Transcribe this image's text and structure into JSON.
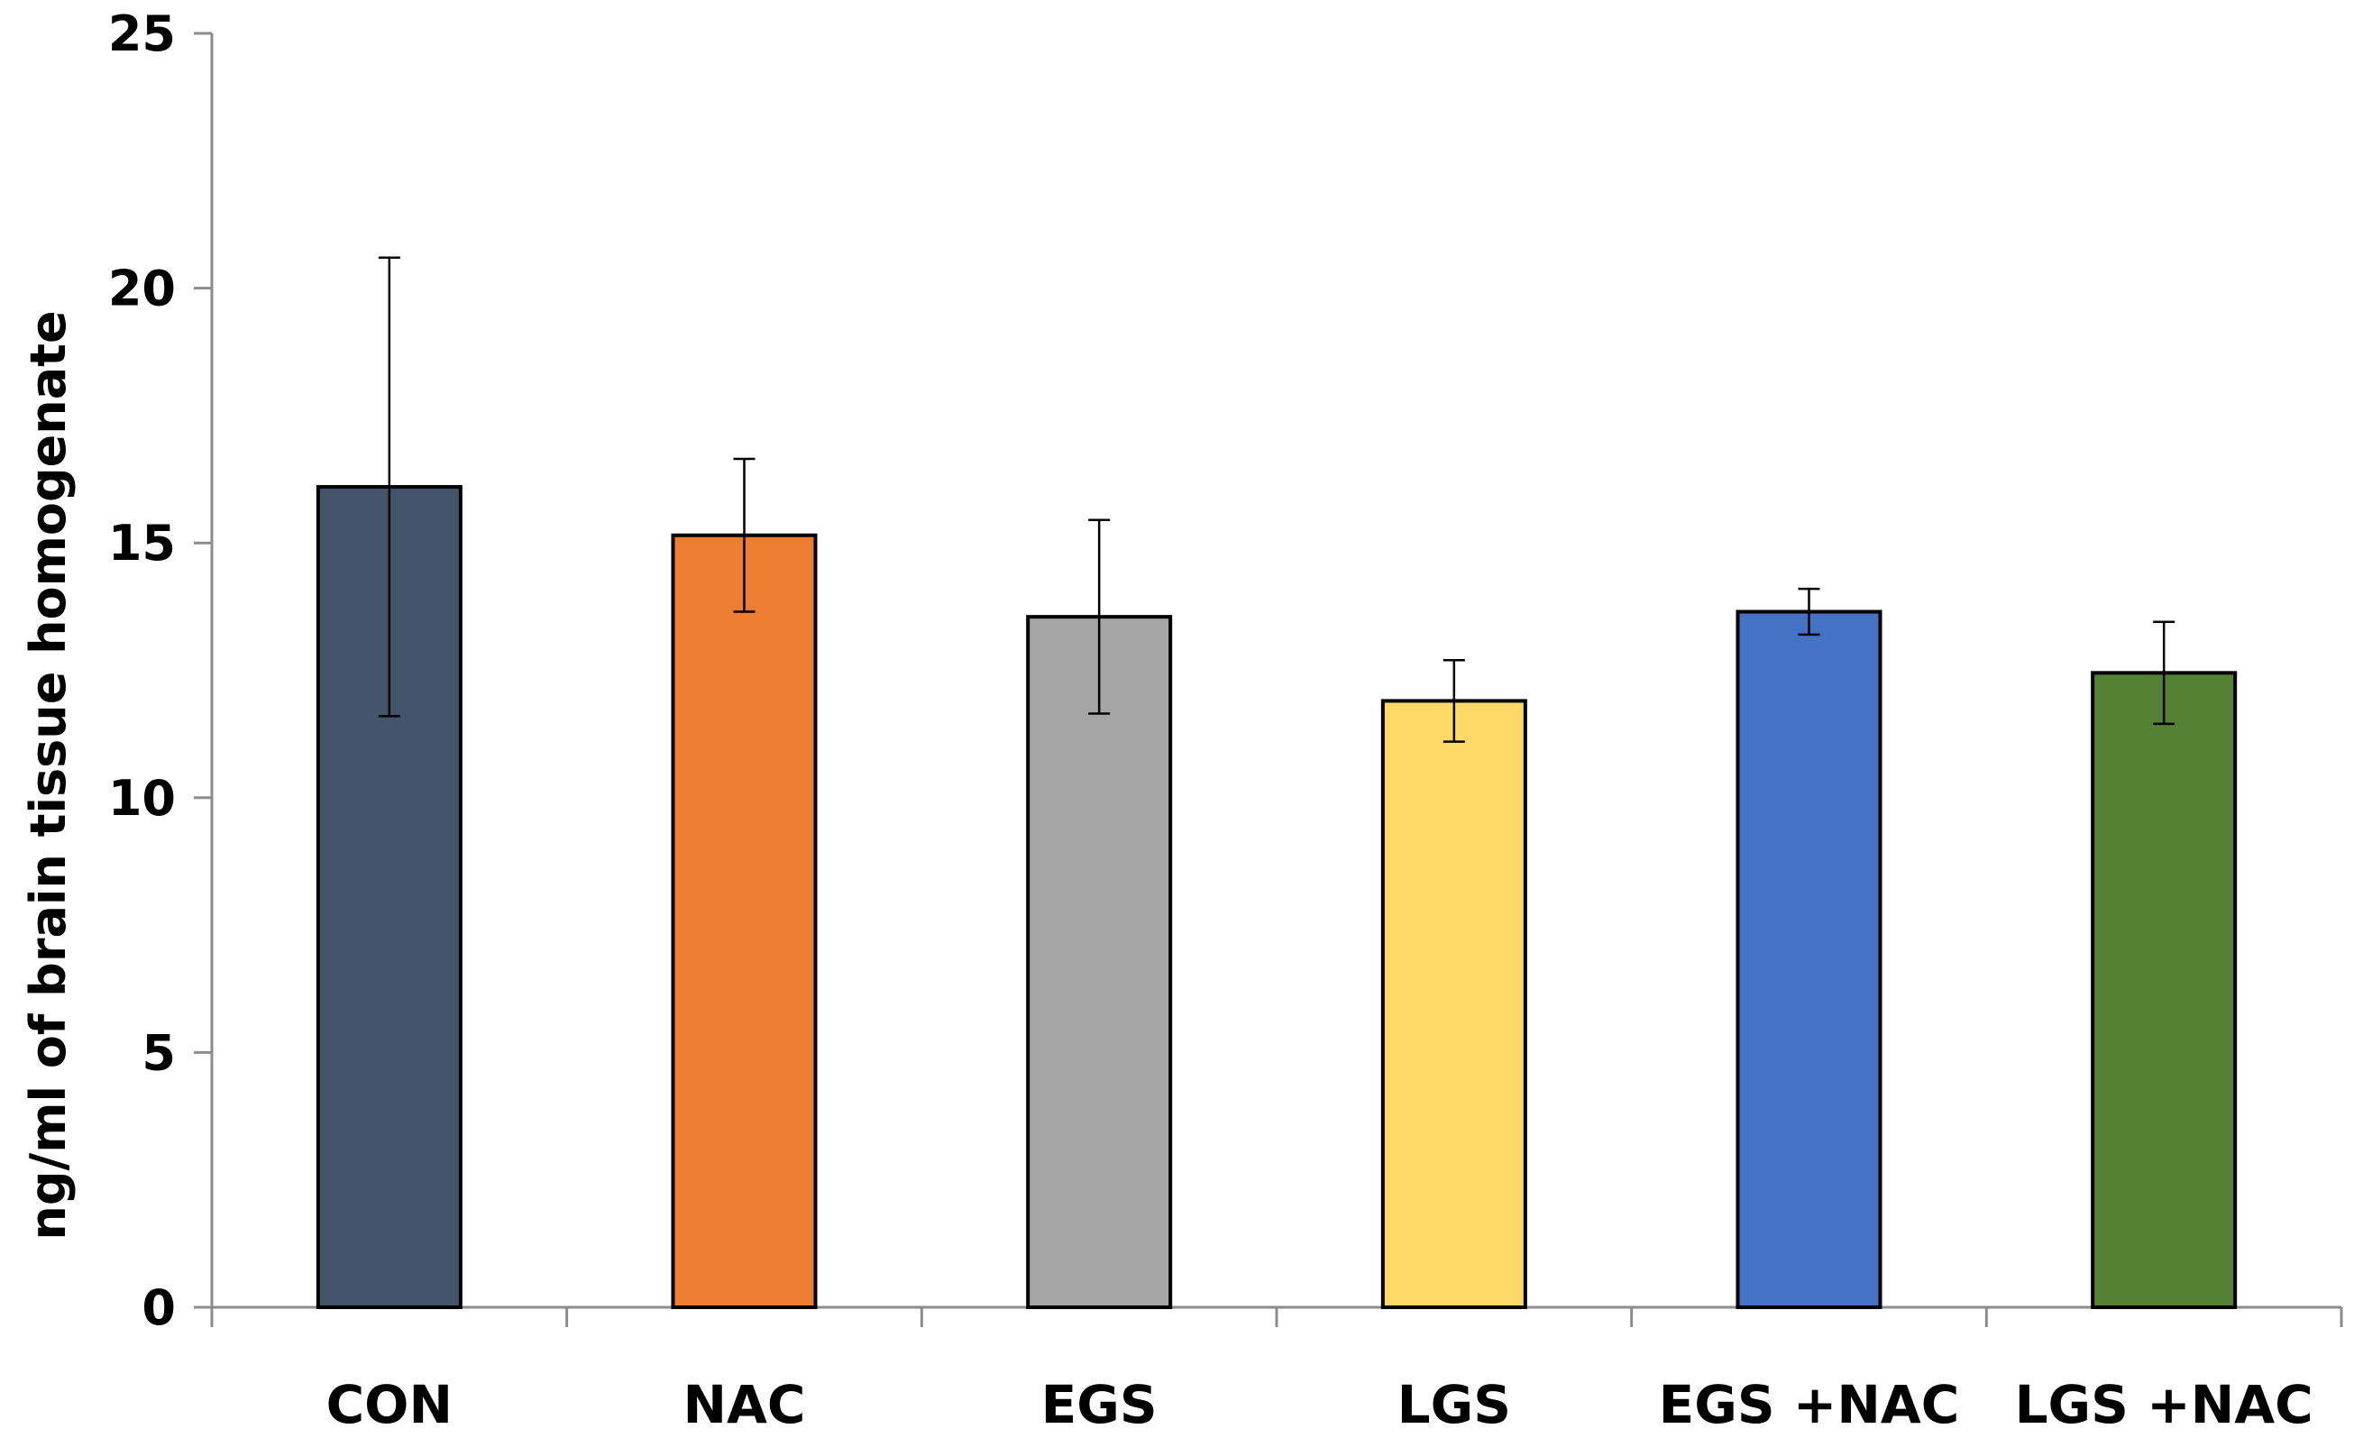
{
  "chart_data": {
    "type": "bar",
    "title": "",
    "xlabel": "",
    "ylabel": "ng/ml of brain tissue homogenate",
    "ylim": [
      0,
      25
    ],
    "yticks": [
      0,
      5,
      10,
      15,
      20,
      25
    ],
    "grid": false,
    "legend": "none",
    "categories": [
      "CON",
      "NAC",
      "EGS",
      "LGS",
      "EGS +NAC",
      "LGS +NAC"
    ],
    "values": [
      16.1,
      15.15,
      13.55,
      11.9,
      13.65,
      12.45
    ],
    "errors": [
      4.5,
      1.5,
      1.9,
      0.8,
      0.45,
      1.0
    ],
    "colors": [
      "#44546a",
      "#ed7d31",
      "#a5a5a5",
      "#ffd966",
      "#4472c4",
      "#548235"
    ]
  }
}
